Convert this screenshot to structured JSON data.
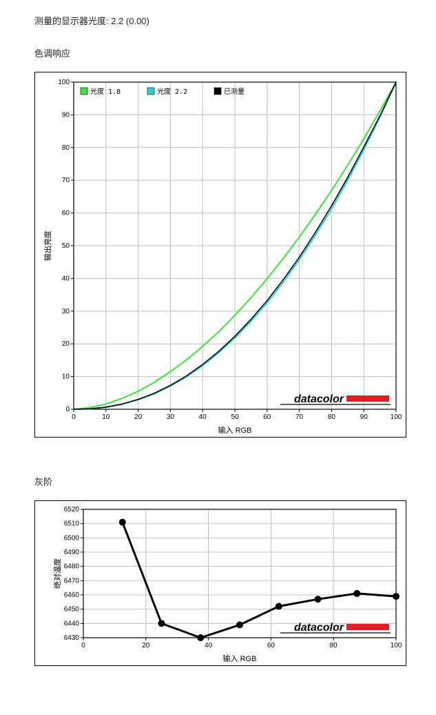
{
  "header": {
    "measured_gamma_text": "测量的显示器光度: 2.2 (0.00)"
  },
  "section1": {
    "title": "色调响应"
  },
  "section2": {
    "title": "灰阶"
  },
  "chart1": {
    "type": "line",
    "title": null,
    "xlabel": "输入 RGB",
    "ylabel": "输出亮度",
    "label_fontsize": 11,
    "tick_fontsize": 10,
    "xlim": [
      0,
      100
    ],
    "ylim": [
      0,
      100
    ],
    "xtick_step": 10,
    "ytick_step": 10,
    "background_color": "#ffffff",
    "grid_color": "#bfbfbf",
    "border_color": "#000000",
    "legend": {
      "items": [
        {
          "label": "光度 1.8",
          "color": "#3fdf3f"
        },
        {
          "label": "光度 2.2",
          "color": "#2fced8"
        },
        {
          "label": "已测量",
          "color": "#000000"
        }
      ],
      "fontsize": 10,
      "font_family": "monospace"
    },
    "series": [
      {
        "name": "gamma18",
        "color": "#3fdf3f",
        "width": 2,
        "data": [
          [
            0,
            0
          ],
          [
            5,
            0.5
          ],
          [
            10,
            1.6
          ],
          [
            15,
            3.3
          ],
          [
            20,
            5.5
          ],
          [
            25,
            8.2
          ],
          [
            30,
            11.5
          ],
          [
            35,
            15.1
          ],
          [
            40,
            19.2
          ],
          [
            45,
            23.7
          ],
          [
            50,
            28.7
          ],
          [
            55,
            34.1
          ],
          [
            60,
            39.9
          ],
          [
            65,
            46.1
          ],
          [
            70,
            52.6
          ],
          [
            75,
            59.6
          ],
          [
            80,
            66.9
          ],
          [
            85,
            74.6
          ],
          [
            90,
            82.7
          ],
          [
            95,
            91.2
          ],
          [
            100,
            100
          ]
        ]
      },
      {
        "name": "gamma22",
        "color": "#2fced8",
        "width": 2,
        "data": [
          [
            0,
            0
          ],
          [
            5,
            0.1
          ],
          [
            10,
            0.6
          ],
          [
            15,
            1.5
          ],
          [
            20,
            2.9
          ],
          [
            25,
            4.7
          ],
          [
            30,
            7.1
          ],
          [
            35,
            9.9
          ],
          [
            40,
            13.3
          ],
          [
            45,
            17.3
          ],
          [
            50,
            21.8
          ],
          [
            55,
            26.9
          ],
          [
            60,
            32.5
          ],
          [
            65,
            38.8
          ],
          [
            70,
            45.7
          ],
          [
            75,
            53.2
          ],
          [
            80,
            61.2
          ],
          [
            85,
            70.0
          ],
          [
            90,
            79.3
          ],
          [
            95,
            89.3
          ],
          [
            100,
            100
          ]
        ]
      },
      {
        "name": "measured",
        "color": "#000000",
        "width": 1.6,
        "data": [
          [
            0,
            0
          ],
          [
            5,
            0.14
          ],
          [
            10,
            0.65
          ],
          [
            15,
            1.6
          ],
          [
            20,
            3.0
          ],
          [
            25,
            4.9
          ],
          [
            30,
            7.3
          ],
          [
            35,
            10.2
          ],
          [
            40,
            13.7
          ],
          [
            45,
            17.7
          ],
          [
            50,
            22.3
          ],
          [
            55,
            27.5
          ],
          [
            60,
            33.2
          ],
          [
            65,
            39.6
          ],
          [
            70,
            46.5
          ],
          [
            75,
            54.1
          ],
          [
            80,
            62.2
          ],
          [
            85,
            70.9
          ],
          [
            90,
            80.2
          ],
          [
            95,
            89.7
          ],
          [
            100,
            100
          ]
        ]
      }
    ],
    "logo": {
      "text": "datacolor",
      "text_color": "#000000",
      "bar_color": "#d92222",
      "fontsize": 16,
      "font_weight": "bold"
    }
  },
  "chart2": {
    "type": "line",
    "xlabel": "输入 RGB",
    "ylabel": "绝对温度",
    "label_fontsize": 11,
    "tick_fontsize": 10,
    "xlim": [
      0,
      100
    ],
    "ylim": [
      6430,
      6520
    ],
    "xtick_step": 20,
    "ytick_step": 10,
    "background_color": "#ffffff",
    "grid_color": "#bfbfbf",
    "border_color": "#000000",
    "series": [
      {
        "name": "kelvin",
        "color": "#000000",
        "width": 3,
        "marker": "circle",
        "marker_size": 5,
        "data": [
          [
            12.5,
            6511
          ],
          [
            25,
            6440
          ],
          [
            37.5,
            6430
          ],
          [
            50,
            6439
          ],
          [
            62.5,
            6452
          ],
          [
            75,
            6457
          ],
          [
            87.5,
            6461
          ],
          [
            100,
            6459
          ]
        ]
      }
    ],
    "logo": {
      "text": "datacolor",
      "text_color": "#000000",
      "bar_color": "#d92222",
      "fontsize": 16,
      "font_weight": "bold"
    }
  }
}
